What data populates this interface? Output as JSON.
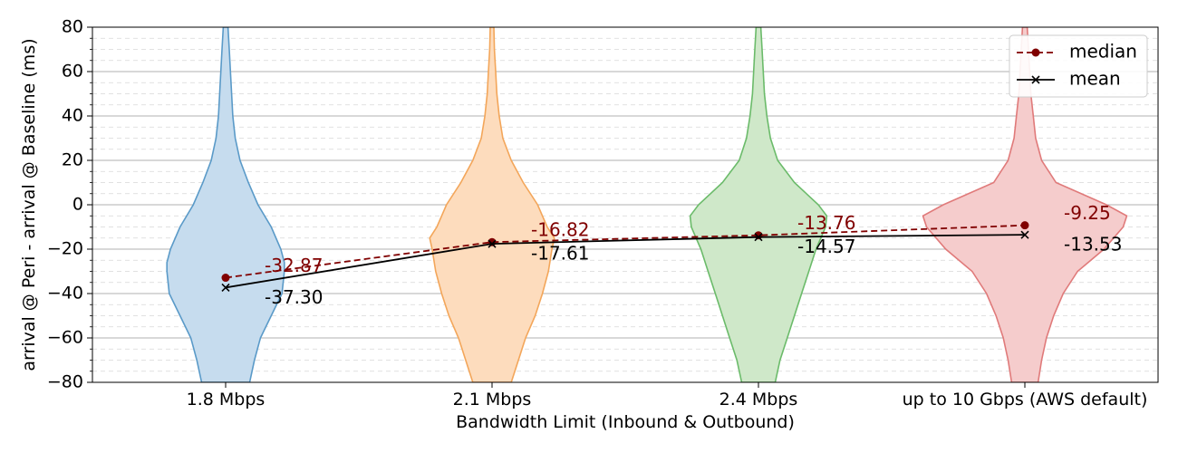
{
  "chart_data": {
    "type": "violin",
    "xlabel": "Bandwidth Limit (Inbound & Outbound)",
    "ylabel": "arrival @ Peri - arrival @ Baseline (ms)",
    "ylim": [
      -80,
      80
    ],
    "yticks": [
      -80,
      -60,
      -40,
      -20,
      0,
      20,
      40,
      60,
      80
    ],
    "yticks_minor_step": 5,
    "grid": true,
    "legend_position": "top-right",
    "categories": [
      "1.8 Mbps",
      "2.1 Mbps",
      "2.4 Mbps",
      "up to 10 Gbps (AWS default)"
    ],
    "series": [
      {
        "name": "median",
        "values": [
          -32.87,
          -16.82,
          -13.76,
          -9.25
        ],
        "labels": [
          "-32.87",
          "-16.82",
          "-13.76",
          "-9.25"
        ],
        "color": "#800000",
        "style": "dashed",
        "marker": "circle"
      },
      {
        "name": "mean",
        "values": [
          -37.3,
          -17.61,
          -14.57,
          -13.53
        ],
        "labels": [
          "-37.30",
          "-17.61",
          "-14.57",
          "-13.53"
        ],
        "color": "#000000",
        "style": "solid",
        "marker": "x"
      }
    ],
    "violins": [
      {
        "category": "1.8 Mbps",
        "fill": "#c6dcee",
        "stroke": "#5a9ac8",
        "profile": [
          [
            -80,
            0.2
          ],
          [
            -70,
            0.24
          ],
          [
            -60,
            0.29
          ],
          [
            -50,
            0.38
          ],
          [
            -40,
            0.47
          ],
          [
            -30,
            0.49
          ],
          [
            -26,
            0.49
          ],
          [
            -20,
            0.46
          ],
          [
            -10,
            0.38
          ],
          [
            0,
            0.27
          ],
          [
            10,
            0.19
          ],
          [
            20,
            0.12
          ],
          [
            30,
            0.08
          ],
          [
            40,
            0.06
          ],
          [
            50,
            0.05
          ],
          [
            60,
            0.04
          ],
          [
            70,
            0.03
          ],
          [
            80,
            0.02
          ]
        ]
      },
      {
        "category": "2.1 Mbps",
        "fill": "#fddcbd",
        "stroke": "#f3a65a",
        "profile": [
          [
            -80,
            0.16
          ],
          [
            -70,
            0.22
          ],
          [
            -60,
            0.28
          ],
          [
            -50,
            0.36
          ],
          [
            -40,
            0.42
          ],
          [
            -30,
            0.47
          ],
          [
            -20,
            0.5
          ],
          [
            -15,
            0.52
          ],
          [
            -10,
            0.46
          ],
          [
            -5,
            0.42
          ],
          [
            0,
            0.38
          ],
          [
            10,
            0.26
          ],
          [
            20,
            0.16
          ],
          [
            30,
            0.09
          ],
          [
            40,
            0.06
          ],
          [
            50,
            0.04
          ],
          [
            60,
            0.03
          ],
          [
            70,
            0.02
          ],
          [
            80,
            0.015
          ]
        ]
      },
      {
        "category": "2.4 Mbps",
        "fill": "#cfe8c9",
        "stroke": "#6bbb6a",
        "profile": [
          [
            -80,
            0.14
          ],
          [
            -70,
            0.18
          ],
          [
            -60,
            0.24
          ],
          [
            -50,
            0.3
          ],
          [
            -40,
            0.36
          ],
          [
            -30,
            0.42
          ],
          [
            -20,
            0.48
          ],
          [
            -10,
            0.56
          ],
          [
            -5,
            0.57
          ],
          [
            0,
            0.5
          ],
          [
            10,
            0.3
          ],
          [
            20,
            0.16
          ],
          [
            30,
            0.1
          ],
          [
            40,
            0.07
          ],
          [
            50,
            0.05
          ],
          [
            60,
            0.04
          ],
          [
            70,
            0.03
          ],
          [
            80,
            0.02
          ]
        ]
      },
      {
        "category": "up to 10 Gbps (AWS default)",
        "fill": "#f5cccc",
        "stroke": "#e07a7a",
        "profile": [
          [
            -80,
            0.11
          ],
          [
            -70,
            0.14
          ],
          [
            -60,
            0.18
          ],
          [
            -50,
            0.24
          ],
          [
            -40,
            0.32
          ],
          [
            -30,
            0.44
          ],
          [
            -20,
            0.66
          ],
          [
            -10,
            0.82
          ],
          [
            -5,
            0.85
          ],
          [
            0,
            0.68
          ],
          [
            10,
            0.26
          ],
          [
            20,
            0.14
          ],
          [
            30,
            0.09
          ],
          [
            40,
            0.07
          ],
          [
            50,
            0.05
          ],
          [
            60,
            0.04
          ],
          [
            70,
            0.03
          ],
          [
            80,
            0.02
          ]
        ]
      }
    ]
  }
}
